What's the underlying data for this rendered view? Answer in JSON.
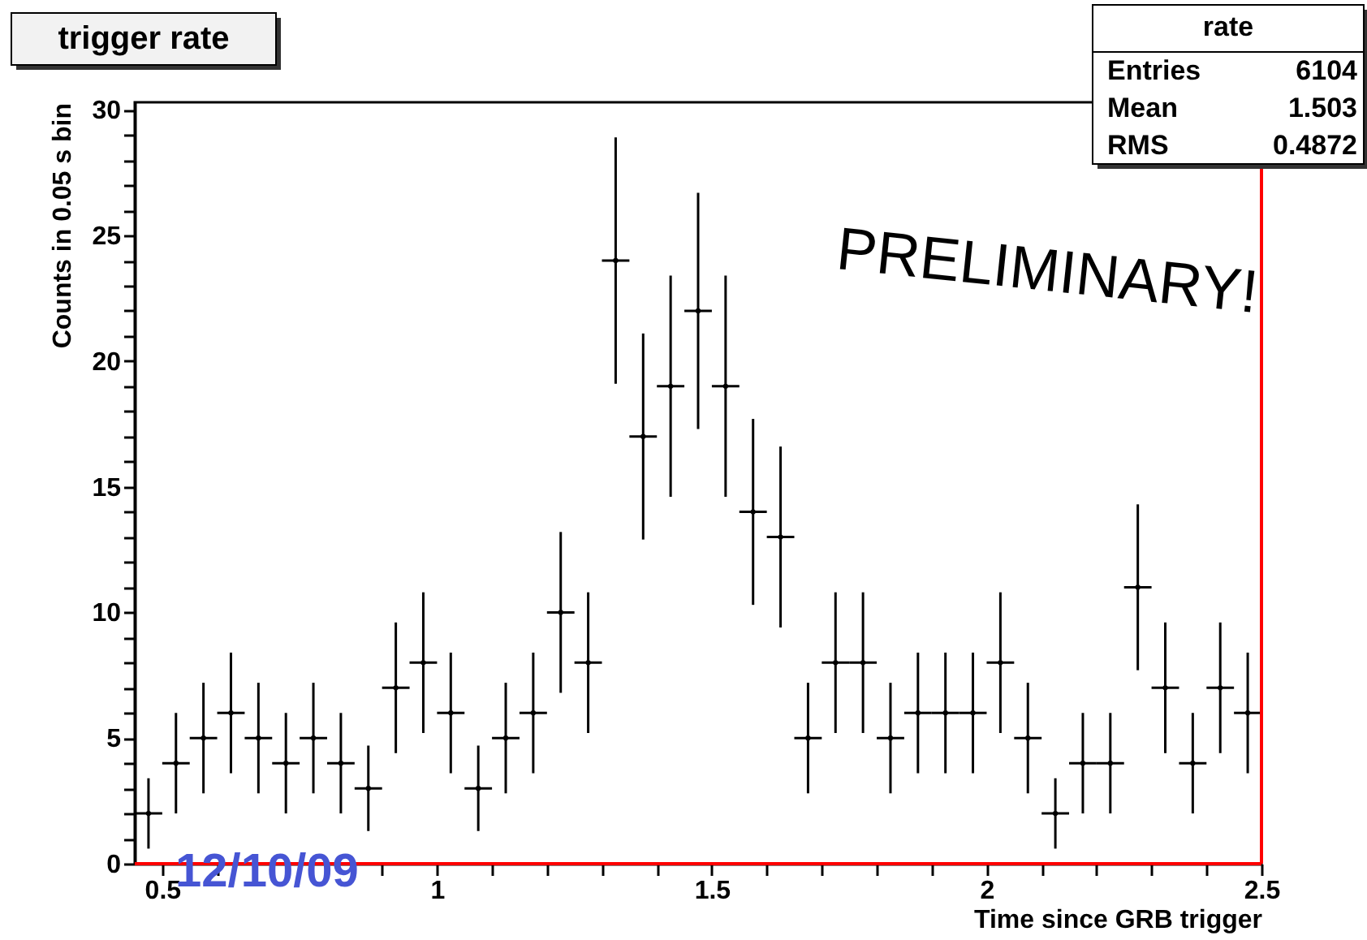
{
  "chart_data": {
    "type": "scatter",
    "title": "trigger rate",
    "xlabel": "Time since GRB trigger",
    "ylabel": "Counts in 0.05 s bin",
    "color": "#000000",
    "marker": "circle",
    "x": [
      0.475,
      0.525,
      0.575,
      0.625,
      0.675,
      0.725,
      0.775,
      0.825,
      0.875,
      0.925,
      0.975,
      1.025,
      1.075,
      1.125,
      1.175,
      1.225,
      1.275,
      1.325,
      1.375,
      1.425,
      1.475,
      1.525,
      1.575,
      1.625,
      1.675,
      1.725,
      1.775,
      1.825,
      1.875,
      1.925,
      1.975,
      2.025,
      2.075,
      2.125,
      2.175,
      2.225,
      2.275,
      2.325,
      2.375,
      2.425,
      2.475
    ],
    "values": [
      2,
      4,
      5,
      6,
      5,
      4,
      5,
      4,
      3,
      7,
      8,
      6,
      3,
      5,
      6,
      10,
      8,
      24,
      17,
      19,
      22,
      19,
      14,
      13,
      5,
      8,
      8,
      5,
      6,
      6,
      6,
      8,
      5,
      2,
      4,
      4,
      11,
      7,
      4,
      7,
      6
    ],
    "errors": [
      1.4,
      2,
      2.2,
      2.4,
      2.2,
      2,
      2.2,
      2,
      1.7,
      2.6,
      2.8,
      2.4,
      1.7,
      2.2,
      2.4,
      3.2,
      2.8,
      4.9,
      4.1,
      4.4,
      4.7,
      4.4,
      3.7,
      3.6,
      2.2,
      2.8,
      2.8,
      2.2,
      2.4,
      2.4,
      2.4,
      2.8,
      2.2,
      1.4,
      2,
      2,
      3.3,
      2.6,
      2,
      2.6,
      2.4
    ],
    "xerrors": [
      0.025,
      0.025,
      0.025,
      0.025,
      0.025,
      0.025,
      0.025,
      0.025,
      0.025,
      0.025,
      0.025,
      0.025,
      0.025,
      0.025,
      0.025,
      0.025,
      0.025,
      0.025,
      0.025,
      0.025,
      0.025,
      0.025,
      0.025,
      0.025,
      0.025,
      0.025,
      0.025,
      0.025,
      0.025,
      0.025,
      0.025,
      0.025,
      0.025,
      0.025,
      0.025,
      0.025,
      0.025,
      0.025,
      0.025,
      0.025,
      0.025
    ],
    "xlim": [
      0.45,
      2.5
    ],
    "ylim": [
      0,
      30.3
    ],
    "xticks": [
      0.5,
      {
        "value": 0.6,
        "label": null
      },
      {
        "value": 0.7,
        "label": null
      },
      {
        "value": 0.8,
        "label": null
      },
      {
        "value": 0.9,
        "label": null
      },
      1,
      {
        "value": 1.1,
        "label": null
      },
      {
        "value": 1.2,
        "label": null
      },
      {
        "value": 1.3,
        "label": null
      },
      {
        "value": 1.4,
        "label": null
      },
      1.5,
      {
        "value": 1.6,
        "label": null
      },
      {
        "value": 1.7,
        "label": null
      },
      {
        "value": 1.8,
        "label": null
      },
      {
        "value": 1.9,
        "label": null
      },
      2,
      {
        "value": 2.1,
        "label": null
      },
      {
        "value": 2.2,
        "label": null
      },
      {
        "value": 2.3,
        "label": null
      },
      {
        "value": 2.4,
        "label": null
      },
      2.5
    ],
    "yticks": [
      0,
      {
        "value": 1,
        "label": null
      },
      {
        "value": 2,
        "label": null
      },
      {
        "value": 3,
        "label": null
      },
      {
        "value": 4,
        "label": null
      },
      5,
      {
        "value": 6,
        "label": null
      },
      {
        "value": 7,
        "label": null
      },
      {
        "value": 8,
        "label": null
      },
      {
        "value": 9,
        "label": null
      },
      10,
      {
        "value": 11,
        "label": null
      },
      {
        "value": 12,
        "label": null
      },
      {
        "value": 13,
        "label": null
      },
      {
        "value": 14,
        "label": null
      },
      15,
      {
        "value": 16,
        "label": null
      },
      {
        "value": 17,
        "label": null
      },
      {
        "value": 18,
        "label": null
      },
      {
        "value": 19,
        "label": null
      },
      20,
      {
        "value": 21,
        "label": null
      },
      {
        "value": 22,
        "label": null
      },
      {
        "value": 23,
        "label": null
      },
      {
        "value": 24,
        "label": null
      },
      25,
      {
        "value": 26,
        "label": null
      },
      {
        "value": 27,
        "label": null
      },
      {
        "value": 28,
        "label": null
      },
      {
        "value": 29,
        "label": null
      },
      30
    ],
    "ref_lines": [
      {
        "axis": "y",
        "value": 0,
        "color": "#ff0000"
      },
      {
        "axis": "x",
        "value": 2.5,
        "color": "#ff0000"
      }
    ],
    "annotations": [
      "12/10/09",
      "PRELIMINARY!",
      "rate",
      "Entries",
      "6104",
      "Mean",
      "1.503",
      "RMS",
      "0.4872"
    ]
  }
}
